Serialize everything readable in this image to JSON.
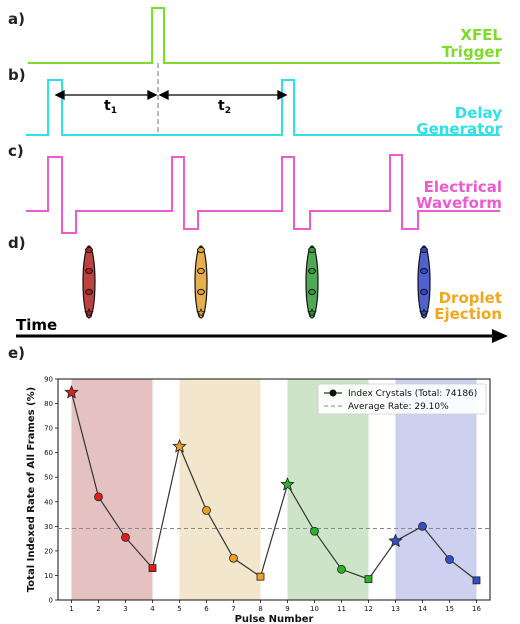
{
  "panels": {
    "a": {
      "label": "a)",
      "signal_line1": "XFEL",
      "signal_line2": "Trigger",
      "color": "#7ddc2a"
    },
    "b": {
      "label": "b)",
      "signal_line1": "Delay",
      "signal_line2": "Generator",
      "color": "#2ee0e8",
      "t1": "t",
      "t1_sub": "1",
      "t2": "t",
      "t2_sub": "2"
    },
    "c": {
      "label": "c)",
      "signal_line1": "Electrical",
      "signal_line2": "Waveform",
      "color": "#ee5ad0"
    },
    "d": {
      "label": "d)",
      "signal_line1": "Droplet",
      "signal_line2": "Ejection",
      "color": "#f0a81e",
      "time_label": "Time",
      "droplet_colors": [
        "#b02020",
        "#e0a030",
        "#2f9a36",
        "#3347c8"
      ]
    },
    "e": {
      "label": "e)"
    }
  },
  "chart_data": {
    "type": "line",
    "xlabel": "Pulse Number",
    "ylabel": "Total Indexed Rate of All Frames (%)",
    "xlim": [
      0.5,
      16.5
    ],
    "ylim": [
      0,
      90
    ],
    "x_ticks": [
      1,
      2,
      3,
      4,
      5,
      6,
      7,
      8,
      9,
      10,
      11,
      12,
      13,
      14,
      15,
      16
    ],
    "y_ticks": [
      0,
      10,
      20,
      30,
      40,
      50,
      60,
      70,
      80,
      90
    ],
    "grid": false,
    "legend_position": "top-right",
    "series": [
      {
        "name": "Index Crystals (Total: 74186)",
        "x": [
          1,
          2,
          3,
          4,
          5,
          6,
          7,
          8,
          9,
          10,
          11,
          12,
          13,
          14,
          15,
          16
        ],
        "y": [
          84.5,
          42,
          25.5,
          13,
          62.5,
          36.5,
          17,
          9.5,
          47,
          28,
          12.5,
          8.5,
          24,
          30,
          16.5,
          8
        ],
        "markers": [
          "star",
          "circle",
          "circle",
          "square",
          "star",
          "circle",
          "circle",
          "square",
          "star",
          "circle",
          "circle",
          "square",
          "star",
          "circle",
          "circle",
          "square"
        ],
        "colors": [
          "#e01e1e",
          "#e01e1e",
          "#e01e1e",
          "#e01e1e",
          "#f0a020",
          "#f0a020",
          "#f0a020",
          "#f0a020",
          "#28b428",
          "#28b428",
          "#28b428",
          "#28b428",
          "#3050c8",
          "#3050c8",
          "#3050c8",
          "#3050c8"
        ],
        "line_color": "#333333"
      }
    ],
    "average_line": {
      "label": "Average Rate: 29.10%",
      "value": 29.1,
      "color": "#888888"
    },
    "bands": [
      {
        "x_from": 1,
        "x_to": 4,
        "color": "#d8a8a8"
      },
      {
        "x_from": 5,
        "x_to": 8,
        "color": "#ecdcb8"
      },
      {
        "x_from": 9,
        "x_to": 12,
        "color": "#b8d8b0"
      },
      {
        "x_from": 13,
        "x_to": 16,
        "color": "#b8bce8"
      }
    ]
  }
}
